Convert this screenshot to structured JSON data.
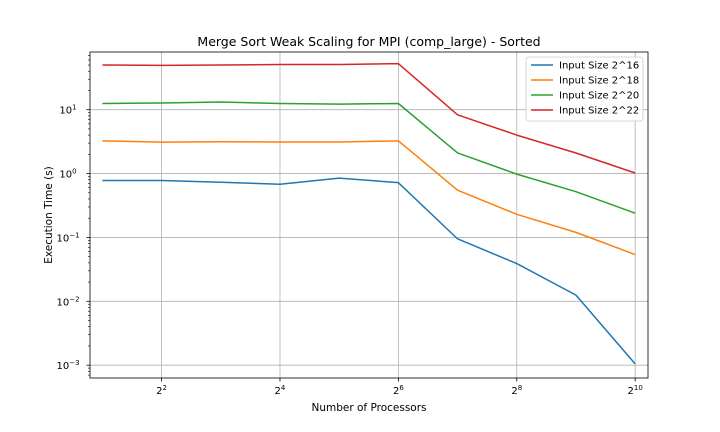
{
  "chart_data": {
    "type": "line",
    "title": "Merge Sort Weak Scaling for MPI (comp_large) - Sorted",
    "xlabel": "Number of Processors",
    "ylabel": "Execution Time (s)",
    "x_scale": "log2",
    "y_scale": "log10",
    "x": [
      2,
      4,
      8,
      16,
      32,
      64,
      128,
      256,
      512,
      1024
    ],
    "xlim": [
      1.73,
      1190
    ],
    "ylim": [
      0.00063,
      80
    ],
    "x_ticks": [
      {
        "value": 4,
        "base": "2",
        "exp": "2"
      },
      {
        "value": 16,
        "base": "2",
        "exp": "4"
      },
      {
        "value": 64,
        "base": "2",
        "exp": "6"
      },
      {
        "value": 256,
        "base": "2",
        "exp": "8"
      },
      {
        "value": 1024,
        "base": "2",
        "exp": "10"
      }
    ],
    "y_ticks": [
      {
        "value": 0.001,
        "base": "10",
        "exp": "−3"
      },
      {
        "value": 0.01,
        "base": "10",
        "exp": "−2"
      },
      {
        "value": 0.1,
        "base": "10",
        "exp": "−1"
      },
      {
        "value": 1,
        "base": "10",
        "exp": "0"
      },
      {
        "value": 10,
        "base": "10",
        "exp": "1"
      }
    ],
    "grid": true,
    "legend_position": "top-right",
    "series": [
      {
        "name": "Input Size 2^16",
        "color": "#1f77b4",
        "values": [
          0.78,
          0.78,
          0.73,
          0.68,
          0.85,
          0.72,
          0.095,
          0.039,
          0.0125,
          0.00105
        ]
      },
      {
        "name": "Input Size 2^18",
        "color": "#ff7f0e",
        "values": [
          3.25,
          3.1,
          3.15,
          3.12,
          3.12,
          3.25,
          0.55,
          0.23,
          0.12,
          0.054
        ]
      },
      {
        "name": "Input Size 2^20",
        "color": "#2ca02c",
        "values": [
          12.5,
          12.7,
          13.2,
          12.5,
          12.2,
          12.5,
          2.1,
          0.98,
          0.52,
          0.24
        ]
      },
      {
        "name": "Input Size 2^22",
        "color": "#d62728",
        "values": [
          50,
          49.5,
          50,
          51,
          51,
          52.5,
          8.3,
          4.0,
          2.1,
          1.02
        ]
      }
    ]
  }
}
